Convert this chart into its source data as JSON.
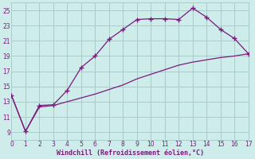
{
  "xlabel": "Windchill (Refroidissement éolien,°C)",
  "background_color": "#ceecea",
  "grid_color": "#aaccca",
  "line_color": "#7b1a7b",
  "xlim": [
    0,
    17
  ],
  "ylim": [
    8,
    26
  ],
  "xticks": [
    0,
    1,
    2,
    3,
    4,
    5,
    6,
    7,
    8,
    9,
    10,
    11,
    12,
    13,
    14,
    15,
    16,
    17
  ],
  "yticks": [
    9,
    11,
    13,
    15,
    17,
    19,
    21,
    23,
    25
  ],
  "series1_x": [
    0,
    1,
    2,
    3,
    4,
    5,
    6,
    7,
    8,
    9,
    10,
    11,
    12,
    13,
    14,
    15,
    16,
    17
  ],
  "series1_y": [
    13.8,
    9.1,
    12.5,
    12.6,
    14.5,
    17.5,
    19.0,
    21.2,
    22.5,
    23.8,
    23.9,
    23.9,
    23.8,
    25.3,
    24.1,
    22.5,
    21.3,
    19.3
  ],
  "series2_x": [
    0,
    1,
    2,
    3,
    4,
    5,
    6,
    7,
    8,
    9,
    10,
    11,
    12,
    13,
    14,
    15,
    16,
    17
  ],
  "series2_y": [
    13.8,
    9.1,
    12.3,
    12.5,
    13.0,
    13.5,
    14.0,
    14.6,
    15.2,
    16.0,
    16.6,
    17.2,
    17.8,
    18.2,
    18.5,
    18.8,
    19.0,
    19.3
  ]
}
